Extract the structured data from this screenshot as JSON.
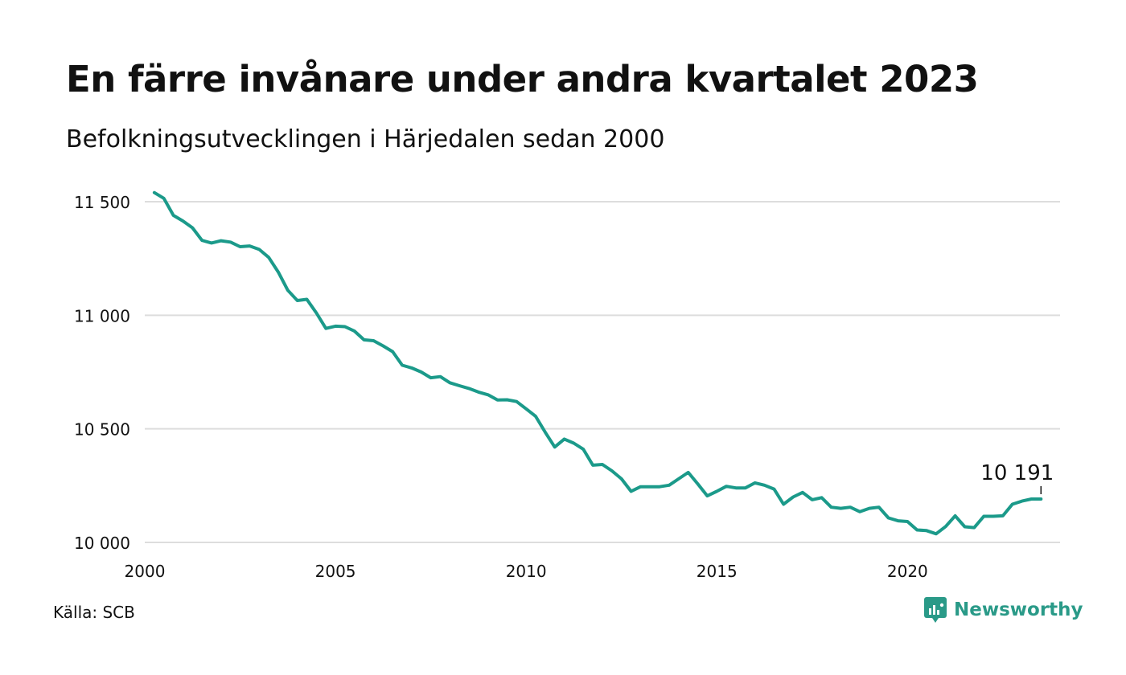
{
  "header": {
    "title": "En färre invånare under andra kvartalet 2023",
    "subtitle": "Befolkningsutvecklingen i Härjedalen sedan 2000"
  },
  "footer": {
    "source": "Källa: SCB",
    "brand_name": "Newsworthy",
    "brand_icon": "newsworthy-logo-icon"
  },
  "colors": {
    "line": "#1b9a8a",
    "grid": "#dddddd",
    "brand": "#2a9a88"
  },
  "chart_data": {
    "type": "line",
    "xlim": [
      2000,
      2024
    ],
    "ylim": [
      10000,
      11550
    ],
    "x_ticks": [
      2000,
      2005,
      2010,
      2015,
      2020
    ],
    "y_ticks": [
      10000,
      10500,
      11000,
      11500
    ],
    "y_tick_labels": [
      "10 000",
      "10 500",
      "11 000",
      "11 500"
    ],
    "grid": true,
    "last_label": "10 191",
    "series": [
      {
        "x": [
          2000.25,
          2000.5,
          2000.75,
          2001.0,
          2001.25,
          2001.5,
          2001.75,
          2002.0,
          2002.25,
          2002.5,
          2002.75,
          2003.0,
          2003.25,
          2003.5,
          2003.75,
          2004.0,
          2004.25,
          2004.5,
          2004.75,
          2005.0,
          2005.25,
          2005.5,
          2005.75,
          2006.0,
          2006.25,
          2006.5,
          2006.75,
          2007.0,
          2007.25,
          2007.5,
          2007.75,
          2008.0,
          2008.25,
          2008.5,
          2008.75,
          2009.0,
          2009.25,
          2009.5,
          2009.75,
          2010.0,
          2010.25,
          2010.5,
          2010.75,
          2011.0,
          2011.25,
          2011.5,
          2011.75,
          2012.0,
          2012.25,
          2012.5,
          2012.75,
          2013.0,
          2013.25,
          2013.5,
          2013.75,
          2014.0,
          2014.25,
          2014.5,
          2014.75,
          2015.0,
          2015.25,
          2015.5,
          2015.75,
          2016.0,
          2016.25,
          2016.5,
          2016.75,
          2017.0,
          2017.25,
          2017.5,
          2017.75,
          2018.0,
          2018.25,
          2018.5,
          2018.75,
          2019.0,
          2019.25,
          2019.5,
          2019.75,
          2020.0,
          2020.25,
          2020.5,
          2020.75,
          2021.0,
          2021.25,
          2021.5,
          2021.75,
          2022.0,
          2022.25,
          2022.5,
          2022.75,
          2023.0,
          2023.25,
          2023.5
        ],
        "y": [
          11540,
          11515,
          11440,
          11415,
          11385,
          11330,
          11318,
          11328,
          11322,
          11302,
          11305,
          11290,
          11255,
          11190,
          11110,
          11065,
          11070,
          11010,
          10942,
          10952,
          10950,
          10930,
          10892,
          10888,
          10865,
          10840,
          10780,
          10768,
          10750,
          10725,
          10730,
          10703,
          10690,
          10678,
          10662,
          10650,
          10627,
          10628,
          10620,
          10588,
          10555,
          10485,
          10420,
          10455,
          10437,
          10410,
          10340,
          10343,
          10315,
          10280,
          10225,
          10245,
          10245,
          10245,
          10252,
          10280,
          10308,
          10258,
          10205,
          10225,
          10247,
          10240,
          10240,
          10262,
          10252,
          10235,
          10168,
          10200,
          10220,
          10188,
          10197,
          10155,
          10150,
          10155,
          10135,
          10150,
          10155,
          10108,
          10095,
          10092,
          10055,
          10052,
          10038,
          10070,
          10117,
          10069,
          10065,
          10115,
          10115,
          10117,
          10168,
          10182,
          10191,
          10191
        ]
      }
    ]
  }
}
